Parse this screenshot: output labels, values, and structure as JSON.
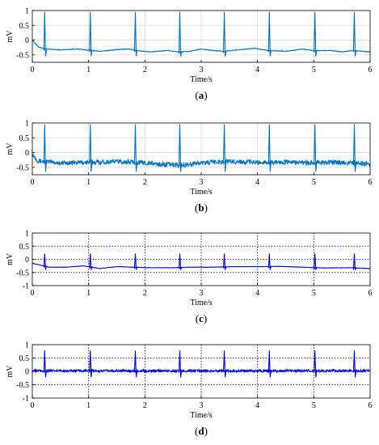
{
  "chart_data": [
    {
      "type": "line",
      "panel_label": "(a)",
      "xlabel": "Time/s",
      "ylabel": "mV",
      "xlim": [
        0,
        6
      ],
      "ylim": [
        -0.75,
        1.0
      ],
      "x_ticks": [
        0,
        1,
        2,
        3,
        4,
        5,
        6
      ],
      "y_ticks": [
        1,
        0.5,
        0,
        -0.5
      ],
      "grid": "solid",
      "line_color": "#0072bd",
      "series": [
        {
          "baseline": [
            [
              0,
              0.0
            ],
            [
              0.1,
              -0.22
            ],
            [
              0.22,
              -0.3
            ],
            [
              0.5,
              -0.33
            ],
            [
              0.8,
              -0.3
            ],
            [
              0.95,
              -0.33
            ],
            [
              1.2,
              -0.38
            ],
            [
              1.5,
              -0.32
            ],
            [
              1.7,
              -0.3
            ],
            [
              1.85,
              -0.35
            ],
            [
              2.1,
              -0.4
            ],
            [
              2.4,
              -0.35
            ],
            [
              2.6,
              -0.4
            ],
            [
              2.8,
              -0.38
            ],
            [
              3.0,
              -0.3
            ],
            [
              3.2,
              -0.35
            ],
            [
              3.4,
              -0.38
            ],
            [
              3.7,
              -0.32
            ],
            [
              3.95,
              -0.28
            ],
            [
              4.2,
              -0.35
            ],
            [
              4.5,
              -0.38
            ],
            [
              4.8,
              -0.3
            ],
            [
              5.0,
              -0.36
            ],
            [
              5.3,
              -0.35
            ],
            [
              5.5,
              -0.4
            ],
            [
              5.7,
              -0.35
            ],
            [
              6.0,
              -0.4
            ]
          ],
          "r_peaks": [
            0.22,
            1.03,
            1.83,
            2.62,
            3.41,
            4.21,
            5.02,
            5.72
          ],
          "r_amplitude": 0.95,
          "s_depth": -0.55,
          "noise": 0.01
        }
      ]
    },
    {
      "type": "line",
      "panel_label": "(b)",
      "xlabel": "Time/s",
      "ylabel": "mV",
      "xlim": [
        0,
        6
      ],
      "ylim": [
        -0.75,
        1.0
      ],
      "x_ticks": [
        0,
        1,
        2,
        3,
        4,
        5,
        6
      ],
      "y_ticks": [
        1,
        0.5,
        0,
        -0.5
      ],
      "grid": "solid",
      "line_color": "#0072bd",
      "series": [
        {
          "baseline": [
            [
              0,
              -0.05
            ],
            [
              0.1,
              -0.28
            ],
            [
              0.5,
              -0.35
            ],
            [
              1.0,
              -0.33
            ],
            [
              1.5,
              -0.3
            ],
            [
              2.0,
              -0.35
            ],
            [
              2.3,
              -0.4
            ],
            [
              2.6,
              -0.42
            ],
            [
              3.0,
              -0.35
            ],
            [
              3.5,
              -0.3
            ],
            [
              4.0,
              -0.33
            ],
            [
              4.5,
              -0.32
            ],
            [
              5.0,
              -0.35
            ],
            [
              5.5,
              -0.33
            ],
            [
              6.0,
              -0.38
            ]
          ],
          "r_peaks": [
            0.22,
            1.03,
            1.83,
            2.62,
            3.41,
            4.21,
            5.02,
            5.72
          ],
          "r_amplitude": 0.95,
          "s_depth": -0.65,
          "noise": 0.08
        }
      ]
    },
    {
      "type": "line",
      "panel_label": "(c)",
      "xlabel": "Time/s",
      "ylabel": "mV",
      "xlim": [
        0,
        6
      ],
      "ylim": [
        -1,
        1
      ],
      "x_ticks": [
        0,
        1,
        2,
        3,
        4,
        5,
        6
      ],
      "y_ticks": [
        1,
        0.5,
        0,
        -0.5,
        -1
      ],
      "grid": "dotted",
      "line_color": "#0000e0",
      "series": [
        {
          "baseline": [
            [
              0,
              -0.15
            ],
            [
              0.1,
              -0.2
            ],
            [
              0.3,
              -0.3
            ],
            [
              0.6,
              -0.3
            ],
            [
              0.9,
              -0.25
            ],
            [
              1.0,
              -0.28
            ],
            [
              1.2,
              -0.35
            ],
            [
              1.5,
              -0.28
            ],
            [
              1.8,
              -0.3
            ],
            [
              2.1,
              -0.32
            ],
            [
              2.5,
              -0.32
            ],
            [
              2.8,
              -0.3
            ],
            [
              3.2,
              -0.3
            ],
            [
              3.6,
              -0.28
            ],
            [
              4.0,
              -0.28
            ],
            [
              4.4,
              -0.27
            ],
            [
              4.8,
              -0.3
            ],
            [
              5.2,
              -0.33
            ],
            [
              5.6,
              -0.32
            ],
            [
              6.0,
              -0.35
            ]
          ],
          "r_peaks": [
            0.22,
            1.03,
            1.83,
            2.62,
            3.41,
            4.21,
            5.02,
            5.72
          ],
          "r_amplitude": 0.22,
          "s_depth": -0.4,
          "noise": 0.005
        }
      ]
    },
    {
      "type": "line",
      "panel_label": "(d)",
      "xlabel": "Time/s",
      "ylabel": "mV",
      "xlim": [
        0,
        6
      ],
      "ylim": [
        -1,
        1
      ],
      "x_ticks": [
        0,
        1,
        2,
        3,
        4,
        5,
        6
      ],
      "y_ticks": [
        1,
        0.5,
        0,
        -0.5,
        -1
      ],
      "grid": "dotted",
      "line_color": "#0000e0",
      "series": [
        {
          "baseline": [
            [
              0,
              0.02
            ],
            [
              6,
              0.02
            ]
          ],
          "r_peaks": [
            0.22,
            1.03,
            1.83,
            2.62,
            3.41,
            4.21,
            5.02,
            5.72
          ],
          "r_amplitude": 0.78,
          "s_depth": -0.22,
          "noise": 0.045
        }
      ]
    }
  ]
}
